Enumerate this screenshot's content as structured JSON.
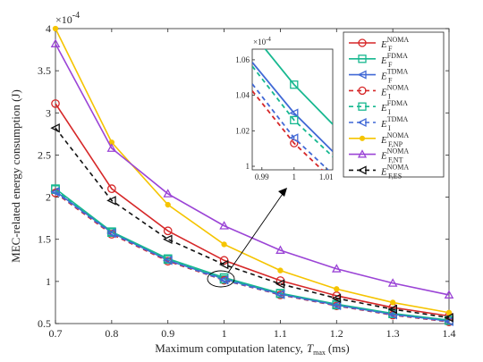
{
  "chart_data": {
    "type": "line",
    "xlabel": "Maximum computation latency,",
    "xlabel_symbol": "T",
    "xlabel_symbol_sub": "max",
    "xlabel_unit": "(ms)",
    "ylabel": "MEC-related energy consumption (J)",
    "y_multiplier": "×10",
    "y_multiplier_exp": "-4",
    "x": [
      0.7,
      0.8,
      0.9,
      1.0,
      1.1,
      1.2,
      1.3,
      1.4
    ],
    "xticks": [
      "0.7",
      "0.8",
      "0.9",
      "1",
      "1.1",
      "1.2",
      "1.3",
      "1.4"
    ],
    "yticks": [
      "0.5",
      "1",
      "1.5",
      "2",
      "2.5",
      "3",
      "3.5",
      "4"
    ],
    "xlim": [
      0.7,
      1.4
    ],
    "ylim": [
      0.5,
      4.0
    ],
    "grid": false,
    "legend_position": "top-right",
    "series": [
      {
        "name": "E",
        "sup": "NOMA",
        "sub": "F",
        "color": "#d62728",
        "dash": "",
        "marker": "circle",
        "marker_fill": "none",
        "values": [
          3.11,
          2.1,
          1.6,
          1.25,
          1.01,
          0.83,
          0.69,
          0.59
        ]
      },
      {
        "name": "E",
        "sup": "FDMA",
        "sub": "F",
        "color": "#17b890",
        "dash": "",
        "marker": "square",
        "marker_fill": "none",
        "values": [
          2.1,
          1.59,
          1.27,
          1.046,
          0.86,
          0.73,
          0.62,
          0.54
        ]
      },
      {
        "name": "E",
        "sup": "TDMA",
        "sub": "F",
        "color": "#4169d6",
        "dash": "",
        "marker": "tri-left",
        "marker_fill": "none",
        "values": [
          2.07,
          1.58,
          1.25,
          1.03,
          0.85,
          0.72,
          0.61,
          0.53
        ]
      },
      {
        "name": "E",
        "sup": "NOMA",
        "sub": "I",
        "color": "#d62728",
        "dash": "5,4",
        "marker": "circle",
        "marker_fill": "none",
        "values": [
          2.05,
          1.56,
          1.24,
          1.013,
          0.84,
          0.71,
          0.6,
          0.52
        ]
      },
      {
        "name": "E",
        "sup": "FDMA",
        "sub": "I",
        "color": "#17b890",
        "dash": "5,4",
        "marker": "square",
        "marker_fill": "none",
        "values": [
          2.09,
          1.58,
          1.26,
          1.026,
          0.855,
          0.72,
          0.615,
          0.535
        ]
      },
      {
        "name": "E",
        "sup": "TDMA",
        "sub": "I",
        "color": "#4169d6",
        "dash": "5,4",
        "marker": "tri-left",
        "marker_fill": "none",
        "values": [
          2.06,
          1.57,
          1.25,
          1.016,
          0.845,
          0.715,
          0.605,
          0.525
        ]
      },
      {
        "name": "E",
        "sup": "NOMA",
        "sub": "F,NP",
        "color": "#f5c400",
        "dash": "",
        "marker": "dot",
        "marker_fill": "#f5c400",
        "values": [
          4.0,
          2.65,
          1.91,
          1.44,
          1.13,
          0.91,
          0.75,
          0.63
        ]
      },
      {
        "name": "E",
        "sup": "NOMA",
        "sub": "F,NT",
        "color": "#9b44d6",
        "dash": "",
        "marker": "tri-up",
        "marker_fill": "none",
        "values": [
          3.82,
          2.58,
          2.04,
          1.66,
          1.37,
          1.15,
          0.98,
          0.84
        ]
      },
      {
        "name": "E",
        "sup": "NOMA",
        "sub": "F,ES",
        "color": "#111111",
        "dash": "5,4",
        "marker": "tri-left",
        "marker_fill": "none",
        "values": [
          2.82,
          1.96,
          1.5,
          1.2,
          0.97,
          0.8,
          0.67,
          0.57
        ]
      }
    ],
    "inset": {
      "y_multiplier": "×10",
      "y_multiplier_exp": "-4",
      "xlim": [
        0.987,
        1.012
      ],
      "ylim": [
        0.998,
        1.066
      ],
      "xticks": [
        "0.99",
        "1",
        "1.01"
      ],
      "xtick_values": [
        0.99,
        1.0,
        1.01
      ],
      "yticks": [
        "1",
        "1.02",
        "1.04",
        "1.06"
      ],
      "ytick_values": [
        1.0,
        1.02,
        1.04,
        1.06
      ]
    }
  }
}
